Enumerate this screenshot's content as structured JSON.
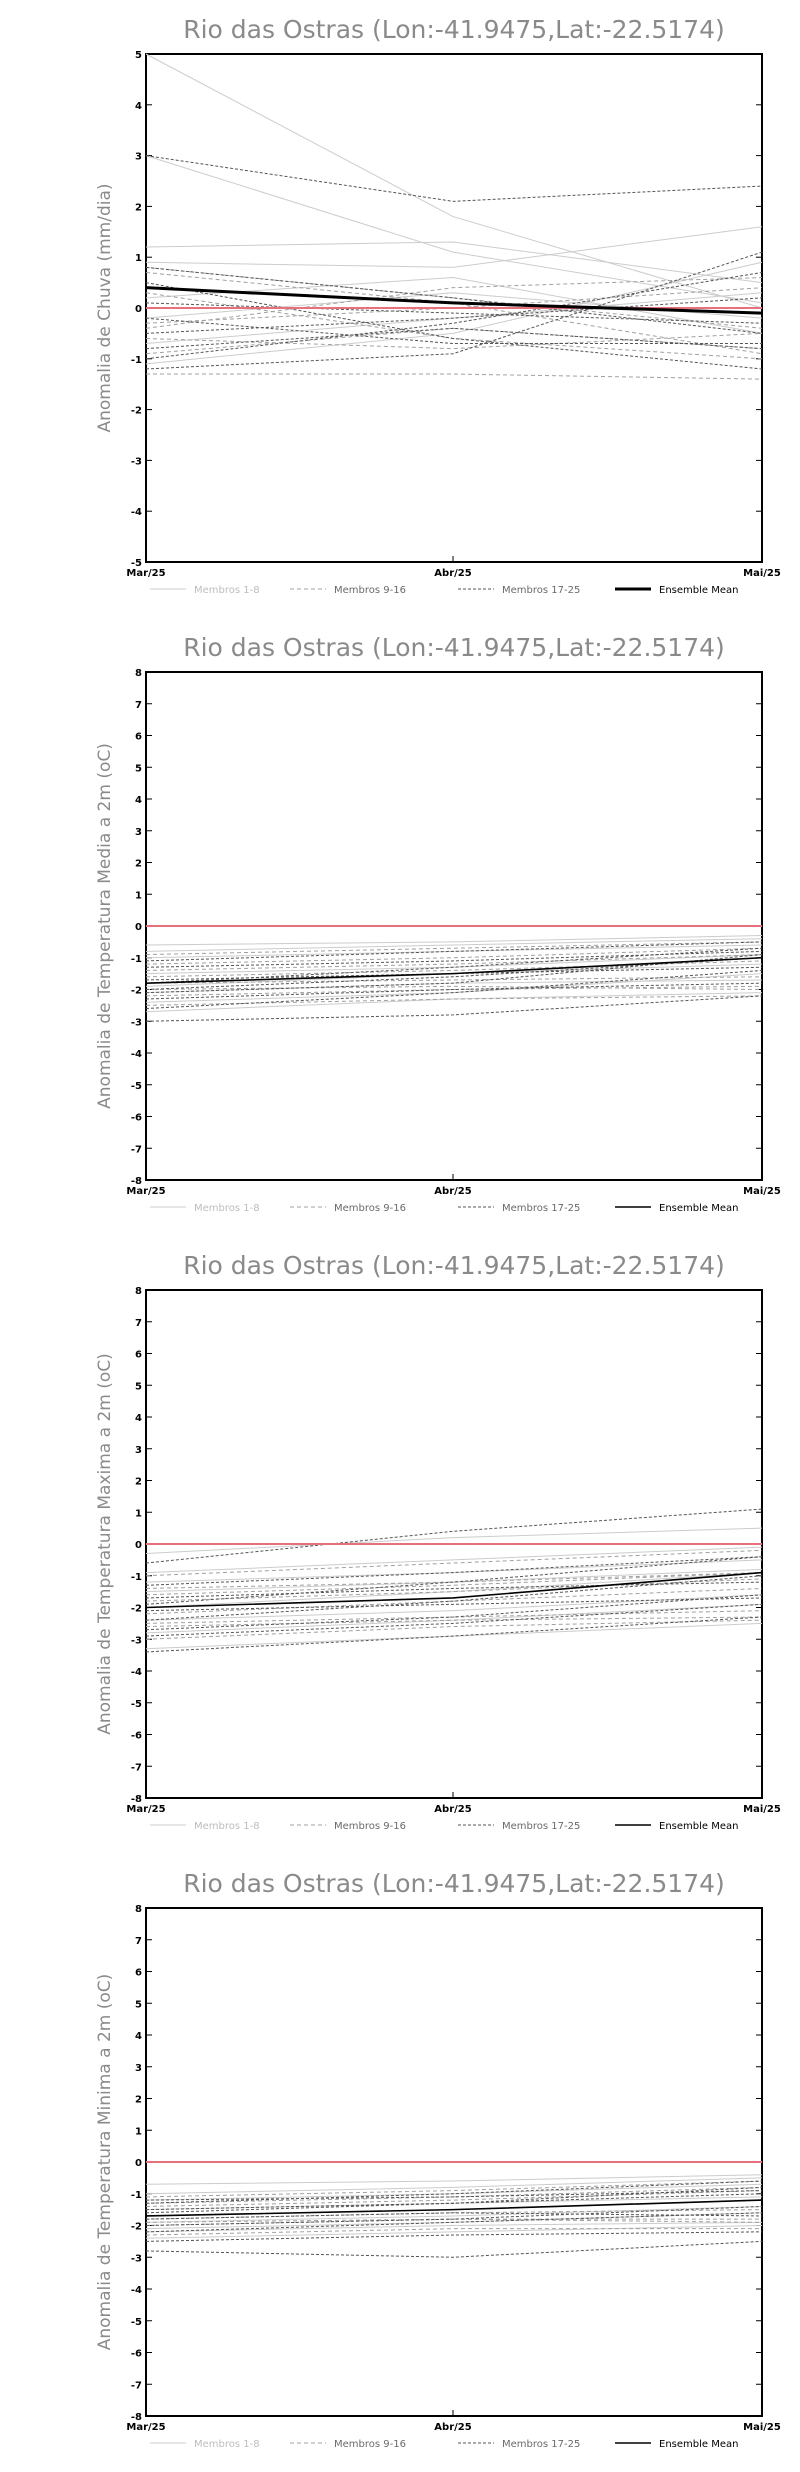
{
  "legend": {
    "members_1_8": "Membros 1-8",
    "members_9_16": "Membros 9-16",
    "members_17_25": "Membros 17-25",
    "ensemble_mean": "Ensemble Mean"
  },
  "colors": {
    "members_1_8": "#cccccc",
    "members_9_16": "#a0a0a0",
    "members_17_25": "#555555",
    "ensemble_mean": "#000000",
    "zero_line": "#e8707a",
    "title": "#8a8a8a"
  },
  "chart_data": [
    {
      "type": "line",
      "title": "Rio das Ostras (Lon:-41.9475,Lat:-22.5174)",
      "ylabel": "Anomalia de Chuva (mm/dia)",
      "xlabel": "",
      "categories": [
        "Mar/25",
        "Abr/25",
        "Mai/25"
      ],
      "yticks": [
        5,
        4,
        3,
        2,
        1,
        0,
        -1,
        -2,
        -3,
        -4,
        -5
      ],
      "ylim": [
        -5,
        5
      ],
      "reference_line": 0,
      "series_groups": {
        "members_1_8": [
          [
            5.3,
            1.8,
            0.0
          ],
          [
            3.0,
            1.1,
            0.1
          ],
          [
            1.2,
            1.3,
            0.5
          ],
          [
            0.9,
            0.8,
            1.6
          ],
          [
            -0.2,
            0.3,
            -0.2
          ],
          [
            -1.1,
            -0.5,
            0.9
          ],
          [
            0.2,
            0.6,
            -0.5
          ],
          [
            -0.7,
            -0.2,
            0.3
          ]
        ],
        "members_9_16": [
          [
            0.8,
            0.2,
            -0.4
          ],
          [
            -0.4,
            0.4,
            0.6
          ],
          [
            -0.9,
            -0.4,
            -0.8
          ],
          [
            0.3,
            -0.6,
            -1.0
          ],
          [
            -0.3,
            0.0,
            0.4
          ],
          [
            -1.3,
            -1.3,
            -1.4
          ],
          [
            0.7,
            0.1,
            -0.9
          ],
          [
            -0.6,
            -0.8,
            -0.5
          ]
        ],
        "members_17_25": [
          [
            3.0,
            2.1,
            2.4
          ],
          [
            0.8,
            0.2,
            -0.5
          ],
          [
            -0.5,
            -0.2,
            0.2
          ],
          [
            -1.2,
            -0.9,
            1.1
          ],
          [
            -0.8,
            -0.4,
            -0.8
          ],
          [
            0.5,
            -0.6,
            -1.2
          ],
          [
            -0.2,
            -0.7,
            -0.7
          ],
          [
            -1.0,
            -0.3,
            0.7
          ],
          [
            0.1,
            -0.1,
            -0.3
          ]
        ]
      },
      "ensemble_mean": [
        0.4,
        0.1,
        -0.1
      ]
    },
    {
      "type": "line",
      "title": "Rio das Ostras (Lon:-41.9475,Lat:-22.5174)",
      "ylabel": "Anomalia de Temperatura Media a 2m (oC)",
      "xlabel": "",
      "categories": [
        "Mar/25",
        "Abr/25",
        "Mai/25"
      ],
      "yticks": [
        8,
        7,
        6,
        5,
        4,
        3,
        2,
        1,
        0,
        -1,
        -2,
        -3,
        -4,
        -5,
        -6,
        -7,
        -8
      ],
      "ylim": [
        -8,
        8
      ],
      "reference_line": 0,
      "series_groups": {
        "members_1_8": [
          [
            -0.6,
            -0.5,
            -0.3
          ],
          [
            -2.4,
            -2.1,
            -1.5
          ],
          [
            -1.0,
            -0.8,
            -0.6
          ],
          [
            -2.7,
            -2.3,
            -2.1
          ],
          [
            -1.5,
            -1.3,
            -0.9
          ],
          [
            -2.1,
            -1.8,
            -1.7
          ],
          [
            -0.8,
            -0.6,
            -0.4
          ],
          [
            -1.9,
            -1.5,
            -1.2
          ]
        ],
        "members_9_16": [
          [
            -1.2,
            -1.0,
            -0.7
          ],
          [
            -2.2,
            -2.0,
            -1.9
          ],
          [
            -1.6,
            -1.4,
            -1.1
          ],
          [
            -2.5,
            -2.3,
            -2.2
          ],
          [
            -0.9,
            -0.7,
            -0.5
          ],
          [
            -1.8,
            -1.7,
            -1.6
          ],
          [
            -1.4,
            -1.2,
            -0.9
          ],
          [
            -2.0,
            -1.9,
            -2.0
          ]
        ],
        "members_17_25": [
          [
            -3.0,
            -2.8,
            -2.2
          ],
          [
            -1.8,
            -1.3,
            -0.7
          ],
          [
            -2.0,
            -1.6,
            -1.0
          ],
          [
            -1.1,
            -0.8,
            -0.5
          ],
          [
            -2.6,
            -2.1,
            -1.4
          ],
          [
            -1.3,
            -1.1,
            -0.8
          ],
          [
            -2.3,
            -2.0,
            -1.8
          ],
          [
            -1.7,
            -1.5,
            -1.3
          ],
          [
            -2.1,
            -1.8,
            -0.9
          ]
        ]
      },
      "ensemble_mean": [
        -1.8,
        -1.5,
        -1.0
      ]
    },
    {
      "type": "line",
      "title": "Rio das Ostras (Lon:-41.9475,Lat:-22.5174)",
      "ylabel": "Anomalia de Temperatura Maxima a 2m (oC)",
      "xlabel": "",
      "categories": [
        "Mar/25",
        "Abr/25",
        "Mai/25"
      ],
      "yticks": [
        8,
        7,
        6,
        5,
        4,
        3,
        2,
        1,
        0,
        -1,
        -2,
        -3,
        -4,
        -5,
        -6,
        -7,
        -8
      ],
      "ylim": [
        -8,
        8
      ],
      "reference_line": 0,
      "series_groups": {
        "members_1_8": [
          [
            -0.3,
            0.2,
            0.5
          ],
          [
            -2.8,
            -2.4,
            -1.9
          ],
          [
            -1.5,
            -1.2,
            -0.8
          ],
          [
            -3.3,
            -2.9,
            -2.5
          ],
          [
            -2.0,
            -1.5,
            -0.9
          ],
          [
            -0.9,
            -0.5,
            -0.1
          ],
          [
            -2.4,
            -2.1,
            -1.6
          ],
          [
            -1.2,
            -0.9,
            -0.5
          ]
        ],
        "members_9_16": [
          [
            -1.8,
            -1.5,
            -1.1
          ],
          [
            -2.6,
            -2.4,
            -2.3
          ],
          [
            -1.0,
            -0.6,
            -0.2
          ],
          [
            -3.0,
            -2.6,
            -2.4
          ],
          [
            -2.2,
            -1.8,
            -1.4
          ],
          [
            -1.6,
            -1.3,
            -0.9
          ],
          [
            -2.5,
            -2.3,
            -2.1
          ],
          [
            -1.4,
            -1.2,
            -0.9
          ]
        ],
        "members_17_25": [
          [
            -0.6,
            0.4,
            1.1
          ],
          [
            -3.4,
            -2.9,
            -2.3
          ],
          [
            -2.1,
            -1.9,
            -1.7
          ],
          [
            -1.9,
            -1.2,
            -0.4
          ],
          [
            -2.7,
            -2.3,
            -1.6
          ],
          [
            -1.3,
            -0.9,
            -0.4
          ],
          [
            -2.9,
            -2.5,
            -1.9
          ],
          [
            -2.4,
            -1.8,
            -1.0
          ],
          [
            -1.7,
            -1.4,
            -1.2
          ]
        ]
      },
      "ensemble_mean": [
        -2.0,
        -1.7,
        -0.9
      ]
    },
    {
      "type": "line",
      "title": "Rio das Ostras (Lon:-41.9475,Lat:-22.5174)",
      "ylabel": "Anomalia de Temperatura Minima a 2m (oC)",
      "xlabel": "",
      "categories": [
        "Mar/25",
        "Abr/25",
        "Mai/25"
      ],
      "yticks": [
        8,
        7,
        6,
        5,
        4,
        3,
        2,
        1,
        0,
        -1,
        -2,
        -3,
        -4,
        -5,
        -6,
        -7,
        -8
      ],
      "ylim": [
        -8,
        8
      ],
      "reference_line": 0,
      "series_groups": {
        "members_1_8": [
          [
            -0.7,
            -0.6,
            -0.4
          ],
          [
            -2.1,
            -1.9,
            -1.6
          ],
          [
            -1.2,
            -1.0,
            -0.7
          ],
          [
            -2.4,
            -2.2,
            -2.0
          ],
          [
            -1.5,
            -1.3,
            -1.1
          ],
          [
            -1.9,
            -1.7,
            -1.4
          ],
          [
            -1.0,
            -0.8,
            -0.5
          ],
          [
            -2.2,
            -2.0,
            -1.9
          ]
        ],
        "members_9_16": [
          [
            -1.4,
            -1.2,
            -0.9
          ],
          [
            -2.0,
            -1.8,
            -1.8
          ],
          [
            -1.7,
            -1.5,
            -1.2
          ],
          [
            -2.3,
            -2.1,
            -2.1
          ],
          [
            -1.1,
            -0.9,
            -0.6
          ],
          [
            -1.8,
            -1.6,
            -1.5
          ],
          [
            -1.3,
            -1.1,
            -0.8
          ],
          [
            -1.9,
            -1.8,
            -1.9
          ]
        ],
        "members_17_25": [
          [
            -2.8,
            -3.0,
            -2.5
          ],
          [
            -1.6,
            -1.3,
            -0.8
          ],
          [
            -2.0,
            -1.8,
            -1.4
          ],
          [
            -1.3,
            -1.0,
            -0.6
          ],
          [
            -2.2,
            -1.9,
            -1.6
          ],
          [
            -1.5,
            -1.3,
            -1.0
          ],
          [
            -1.8,
            -1.6,
            -1.7
          ],
          [
            -1.2,
            -1.1,
            -0.9
          ],
          [
            -2.5,
            -2.3,
            -2.2
          ]
        ]
      },
      "ensemble_mean": [
        -1.7,
        -1.5,
        -1.2
      ]
    }
  ]
}
